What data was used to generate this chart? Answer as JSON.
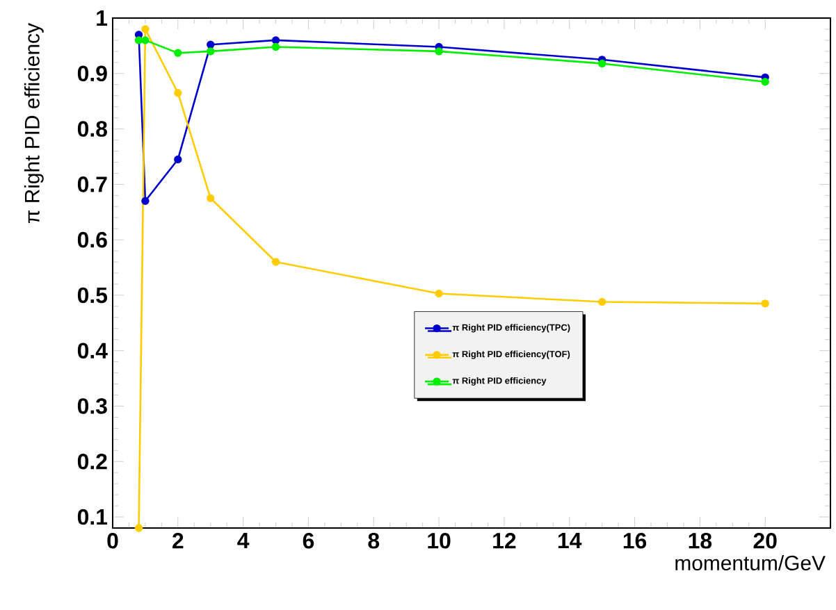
{
  "chart_data": {
    "type": "line",
    "xlabel": "momentum/GeV",
    "ylabel": "π Right PID efficiency",
    "xlim": [
      0,
      22
    ],
    "ylim": [
      0.08,
      1
    ],
    "xticks": [
      0,
      2,
      4,
      6,
      8,
      10,
      12,
      14,
      16,
      18,
      20
    ],
    "yticks": [
      0.1,
      0.2,
      0.3,
      0.4,
      0.5,
      0.6,
      0.7,
      0.8,
      0.9,
      1
    ],
    "x": [
      0.8,
      1,
      2,
      3,
      5,
      10,
      15,
      20
    ],
    "series": [
      {
        "name": "π Right PID efficiency(TPC)",
        "color": "#0000cc",
        "values": [
          0.97,
          0.67,
          0.745,
          0.952,
          0.96,
          0.948,
          0.925,
          0.893
        ]
      },
      {
        "name": "π Right PID efficiency(TOF)",
        "color": "#ffcc00",
        "values": [
          0.08,
          0.98,
          0.865,
          0.675,
          0.56,
          0.503,
          0.488,
          0.485
        ]
      },
      {
        "name": "π Right PID efficiency",
        "color": "#00ee00",
        "values": [
          0.96,
          0.96,
          0.937,
          0.94,
          0.948,
          0.94,
          0.918,
          0.885
        ]
      }
    ],
    "legend": "right",
    "marker": "circle",
    "line_style": "solid",
    "grid": false
  }
}
